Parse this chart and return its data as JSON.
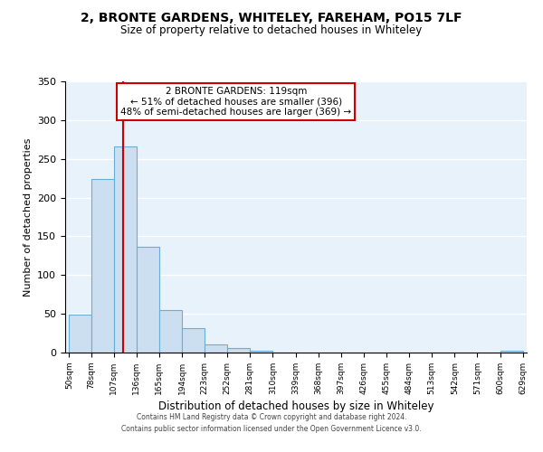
{
  "title": "2, BRONTE GARDENS, WHITELEY, FAREHAM, PO15 7LF",
  "subtitle": "Size of property relative to detached houses in Whiteley",
  "xlabel": "Distribution of detached houses by size in Whiteley",
  "ylabel": "Number of detached properties",
  "bar_color": "#ccdff0",
  "bar_edge_color": "#6aaed6",
  "background_color": "#e8f2fb",
  "grid_color": "#ffffff",
  "annotation_box_color": "#ffffff",
  "annotation_border_color": "#cc0000",
  "vline_color": "#cc0000",
  "vline_x": 119,
  "bins": [
    50,
    78,
    107,
    136,
    165,
    194,
    223,
    252,
    281,
    310,
    339,
    368,
    397,
    426,
    455,
    484,
    513,
    542,
    571,
    600,
    629
  ],
  "counts": [
    49,
    224,
    266,
    136,
    55,
    31,
    10,
    6,
    2,
    0,
    0,
    0,
    0,
    0,
    0,
    0,
    0,
    0,
    0,
    2
  ],
  "ylim": [
    0,
    350
  ],
  "yticks": [
    0,
    50,
    100,
    150,
    200,
    250,
    300,
    350
  ],
  "annotation_line1": "2 BRONTE GARDENS: 119sqm",
  "annotation_line2": "← 51% of detached houses are smaller (396)",
  "annotation_line3": "48% of semi-detached houses are larger (369) →",
  "footer1": "Contains HM Land Registry data © Crown copyright and database right 2024.",
  "footer2": "Contains public sector information licensed under the Open Government Licence v3.0."
}
